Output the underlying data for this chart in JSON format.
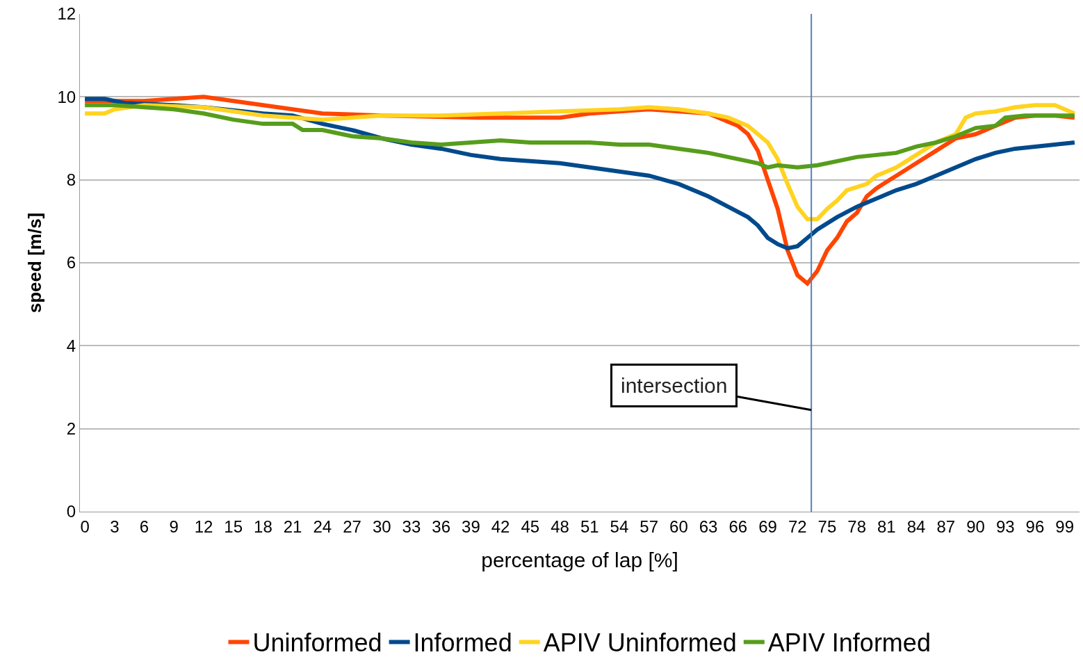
{
  "chart_data": {
    "type": "line",
    "xlabel": "percentage of lap [%]",
    "ylabel": "speed [m/s]",
    "xlim": [
      -0.5,
      100.5
    ],
    "xticks": [
      0,
      3,
      6,
      9,
      12,
      15,
      18,
      21,
      24,
      27,
      30,
      33,
      36,
      39,
      42,
      45,
      48,
      51,
      54,
      57,
      60,
      63,
      66,
      69,
      72,
      75,
      78,
      81,
      84,
      87,
      90,
      93,
      96,
      99
    ],
    "ylim": [
      0,
      12
    ],
    "yticks": [
      0,
      2,
      4,
      6,
      8,
      10,
      12
    ],
    "grid": "y",
    "legend": "bottom",
    "marker": "none",
    "line_style": "solid",
    "series": [
      {
        "name": "Uninformed",
        "color": "#ff4500",
        "x": [
          0,
          6,
          9,
          12,
          18,
          24,
          30,
          40,
          48,
          51,
          57,
          60,
          63,
          66,
          67,
          68,
          69,
          70,
          71,
          72,
          73,
          74,
          75,
          76,
          77,
          78,
          79,
          80,
          82,
          84,
          86,
          88,
          90,
          92,
          94,
          96,
          98,
          100
        ],
        "values": [
          9.9,
          9.9,
          9.95,
          10.0,
          9.8,
          9.6,
          9.55,
          9.5,
          9.5,
          9.6,
          9.7,
          9.65,
          9.6,
          9.3,
          9.1,
          8.7,
          8.0,
          7.3,
          6.3,
          5.7,
          5.5,
          5.8,
          6.3,
          6.6,
          7.0,
          7.2,
          7.6,
          7.8,
          8.1,
          8.4,
          8.7,
          9.0,
          9.1,
          9.3,
          9.5,
          9.55,
          9.55,
          9.5
        ]
      },
      {
        "name": "Informed",
        "color": "#004a8c",
        "x": [
          0,
          2,
          4,
          9,
          12,
          18,
          21,
          24,
          27,
          30,
          33,
          36,
          39,
          42,
          45,
          48,
          51,
          54,
          57,
          60,
          63,
          65,
          67,
          68,
          69,
          70,
          71,
          72,
          73,
          74,
          76,
          78,
          80,
          82,
          84,
          86,
          88,
          90,
          92,
          94,
          96,
          98,
          100
        ],
        "values": [
          9.95,
          9.95,
          9.85,
          9.8,
          9.75,
          9.6,
          9.55,
          9.35,
          9.2,
          9.0,
          8.85,
          8.75,
          8.6,
          8.5,
          8.45,
          8.4,
          8.3,
          8.2,
          8.1,
          7.9,
          7.6,
          7.35,
          7.1,
          6.9,
          6.6,
          6.45,
          6.35,
          6.4,
          6.6,
          6.8,
          7.1,
          7.35,
          7.55,
          7.75,
          7.9,
          8.1,
          8.3,
          8.5,
          8.65,
          8.75,
          8.8,
          8.85,
          8.9
        ]
      },
      {
        "name": "APIV Uninformed",
        "color": "#ffd320",
        "x": [
          0,
          2,
          3,
          6,
          12,
          18,
          21,
          24,
          30,
          36,
          42,
          48,
          54,
          57,
          60,
          63,
          65,
          67,
          68,
          69,
          70,
          71,
          72,
          73,
          74,
          75,
          76,
          77,
          79,
          80,
          82,
          84,
          86,
          88,
          89,
          90,
          92,
          94,
          96,
          98,
          100
        ],
        "values": [
          9.6,
          9.6,
          9.7,
          9.8,
          9.75,
          9.55,
          9.5,
          9.45,
          9.55,
          9.55,
          9.6,
          9.65,
          9.7,
          9.75,
          9.7,
          9.6,
          9.5,
          9.3,
          9.1,
          8.9,
          8.5,
          7.9,
          7.35,
          7.05,
          7.05,
          7.3,
          7.5,
          7.75,
          7.9,
          8.1,
          8.3,
          8.6,
          8.9,
          9.1,
          9.5,
          9.6,
          9.65,
          9.75,
          9.8,
          9.8,
          9.6
        ]
      },
      {
        "name": "APIV Informed",
        "color": "#579d1c",
        "x": [
          0,
          3,
          6,
          9,
          12,
          15,
          18,
          21,
          22,
          24,
          27,
          30,
          33,
          36,
          39,
          42,
          45,
          48,
          51,
          54,
          57,
          60,
          63,
          66,
          68,
          69,
          70,
          72,
          74,
          76,
          78,
          80,
          82,
          84,
          86,
          88,
          90,
          92,
          93,
          95,
          100
        ],
        "values": [
          9.8,
          9.8,
          9.75,
          9.7,
          9.6,
          9.45,
          9.35,
          9.35,
          9.2,
          9.2,
          9.05,
          9.0,
          8.9,
          8.85,
          8.9,
          8.95,
          8.9,
          8.9,
          8.9,
          8.85,
          8.85,
          8.75,
          8.65,
          8.5,
          8.4,
          8.3,
          8.35,
          8.3,
          8.35,
          8.45,
          8.55,
          8.6,
          8.65,
          8.8,
          8.9,
          9.05,
          9.25,
          9.3,
          9.5,
          9.55,
          9.55
        ]
      }
    ],
    "ref_lines": [
      {
        "axis": "x",
        "value": 73.4,
        "color": "#4f81bd"
      }
    ],
    "annotations": [
      {
        "text": "intersection",
        "x": 73.4,
        "y": 2.45
      }
    ]
  }
}
